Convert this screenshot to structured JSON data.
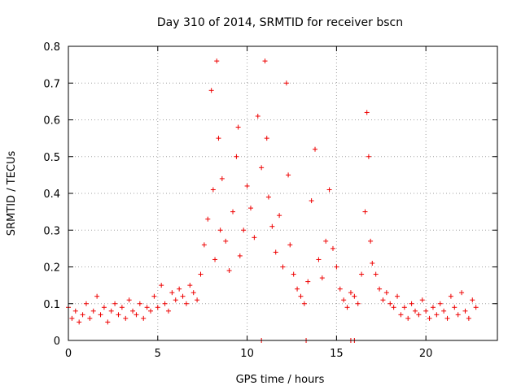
{
  "chart_data": {
    "type": "scatter",
    "title": "Day 310 of 2014, SRMTID for receiver bscn",
    "xlabel": "GPS time / hours",
    "ylabel": "SRMTID / TECUs",
    "xlim": [
      0,
      24
    ],
    "ylim": [
      0,
      0.8
    ],
    "xticks": [
      0,
      5,
      10,
      15,
      20
    ],
    "yticks": [
      0,
      0.1,
      0.2,
      0.3,
      0.4,
      0.5,
      0.6,
      0.7,
      0.8
    ],
    "xtick_labels": [
      "0",
      "5",
      "10",
      "15",
      "20"
    ],
    "ytick_labels": [
      "0",
      "0.1",
      "0.2",
      "0.3",
      "0.4",
      "0.5",
      "0.6",
      "0.7",
      "0.8"
    ],
    "grid": true,
    "marker": "plus",
    "color": "#ee0000",
    "series": [
      {
        "name": "SRMTID",
        "points": [
          [
            0.0,
            0.09
          ],
          [
            0.2,
            0.06
          ],
          [
            0.4,
            0.08
          ],
          [
            0.6,
            0.05
          ],
          [
            0.8,
            0.07
          ],
          [
            1.0,
            0.1
          ],
          [
            1.2,
            0.06
          ],
          [
            1.4,
            0.08
          ],
          [
            1.6,
            0.12
          ],
          [
            1.8,
            0.07
          ],
          [
            2.0,
            0.09
          ],
          [
            2.2,
            0.05
          ],
          [
            2.4,
            0.08
          ],
          [
            2.6,
            0.1
          ],
          [
            2.8,
            0.07
          ],
          [
            3.0,
            0.09
          ],
          [
            3.2,
            0.06
          ],
          [
            3.4,
            0.11
          ],
          [
            3.6,
            0.08
          ],
          [
            3.8,
            0.07
          ],
          [
            4.0,
            0.1
          ],
          [
            4.2,
            0.06
          ],
          [
            4.4,
            0.09
          ],
          [
            4.6,
            0.08
          ],
          [
            4.8,
            0.12
          ],
          [
            5.0,
            0.09
          ],
          [
            5.2,
            0.15
          ],
          [
            5.4,
            0.1
          ],
          [
            5.6,
            0.08
          ],
          [
            5.8,
            0.13
          ],
          [
            6.0,
            0.11
          ],
          [
            6.2,
            0.14
          ],
          [
            6.4,
            0.12
          ],
          [
            6.6,
            0.1
          ],
          [
            6.8,
            0.15
          ],
          [
            7.0,
            0.13
          ],
          [
            7.2,
            0.11
          ],
          [
            7.4,
            0.18
          ],
          [
            7.6,
            0.26
          ],
          [
            7.8,
            0.33
          ],
          [
            8.0,
            0.68
          ],
          [
            8.1,
            0.41
          ],
          [
            8.2,
            0.22
          ],
          [
            8.3,
            0.76
          ],
          [
            8.4,
            0.55
          ],
          [
            8.5,
            0.3
          ],
          [
            8.6,
            0.44
          ],
          [
            8.8,
            0.27
          ],
          [
            9.0,
            0.19
          ],
          [
            9.2,
            0.35
          ],
          [
            9.4,
            0.5
          ],
          [
            9.5,
            0.58
          ],
          [
            9.6,
            0.23
          ],
          [
            9.8,
            0.3
          ],
          [
            10.0,
            0.42
          ],
          [
            10.2,
            0.36
          ],
          [
            10.4,
            0.28
          ],
          [
            10.6,
            0.61
          ],
          [
            10.8,
            0.47
          ],
          [
            11.0,
            0.76
          ],
          [
            11.1,
            0.55
          ],
          [
            11.2,
            0.39
          ],
          [
            11.4,
            0.31
          ],
          [
            11.6,
            0.24
          ],
          [
            11.8,
            0.34
          ],
          [
            12.0,
            0.2
          ],
          [
            12.2,
            0.7
          ],
          [
            12.3,
            0.45
          ],
          [
            12.4,
            0.26
          ],
          [
            12.6,
            0.18
          ],
          [
            12.8,
            0.14
          ],
          [
            13.0,
            0.12
          ],
          [
            13.2,
            0.1
          ],
          [
            13.4,
            0.16
          ],
          [
            13.6,
            0.38
          ],
          [
            13.8,
            0.52
          ],
          [
            14.0,
            0.22
          ],
          [
            14.2,
            0.17
          ],
          [
            14.4,
            0.27
          ],
          [
            14.6,
            0.41
          ],
          [
            14.8,
            0.25
          ],
          [
            15.0,
            0.2
          ],
          [
            15.2,
            0.14
          ],
          [
            15.4,
            0.11
          ],
          [
            15.6,
            0.09
          ],
          [
            15.8,
            0.13
          ],
          [
            16.0,
            0.12
          ],
          [
            16.2,
            0.1
          ],
          [
            16.4,
            0.18
          ],
          [
            16.6,
            0.35
          ],
          [
            16.7,
            0.62
          ],
          [
            16.8,
            0.5
          ],
          [
            16.9,
            0.27
          ],
          [
            17.0,
            0.21
          ],
          [
            17.2,
            0.18
          ],
          [
            17.4,
            0.14
          ],
          [
            17.6,
            0.11
          ],
          [
            17.8,
            0.13
          ],
          [
            18.0,
            0.1
          ],
          [
            18.2,
            0.09
          ],
          [
            18.4,
            0.12
          ],
          [
            18.6,
            0.07
          ],
          [
            18.8,
            0.09
          ],
          [
            19.0,
            0.06
          ],
          [
            19.2,
            0.1
          ],
          [
            19.4,
            0.08
          ],
          [
            19.6,
            0.07
          ],
          [
            19.8,
            0.11
          ],
          [
            20.0,
            0.08
          ],
          [
            20.2,
            0.06
          ],
          [
            20.4,
            0.09
          ],
          [
            20.6,
            0.07
          ],
          [
            20.8,
            0.1
          ],
          [
            21.0,
            0.08
          ],
          [
            21.2,
            0.06
          ],
          [
            21.4,
            0.12
          ],
          [
            21.6,
            0.09
          ],
          [
            21.8,
            0.07
          ],
          [
            22.0,
            0.13
          ],
          [
            22.2,
            0.08
          ],
          [
            22.4,
            0.06
          ],
          [
            22.6,
            0.11
          ],
          [
            22.8,
            0.09
          ]
        ]
      }
    ],
    "baseline_points": [
      [
        10.8,
        0.0
      ],
      [
        13.3,
        0.0
      ],
      [
        15.8,
        0.0
      ],
      [
        16.0,
        0.0
      ]
    ]
  }
}
